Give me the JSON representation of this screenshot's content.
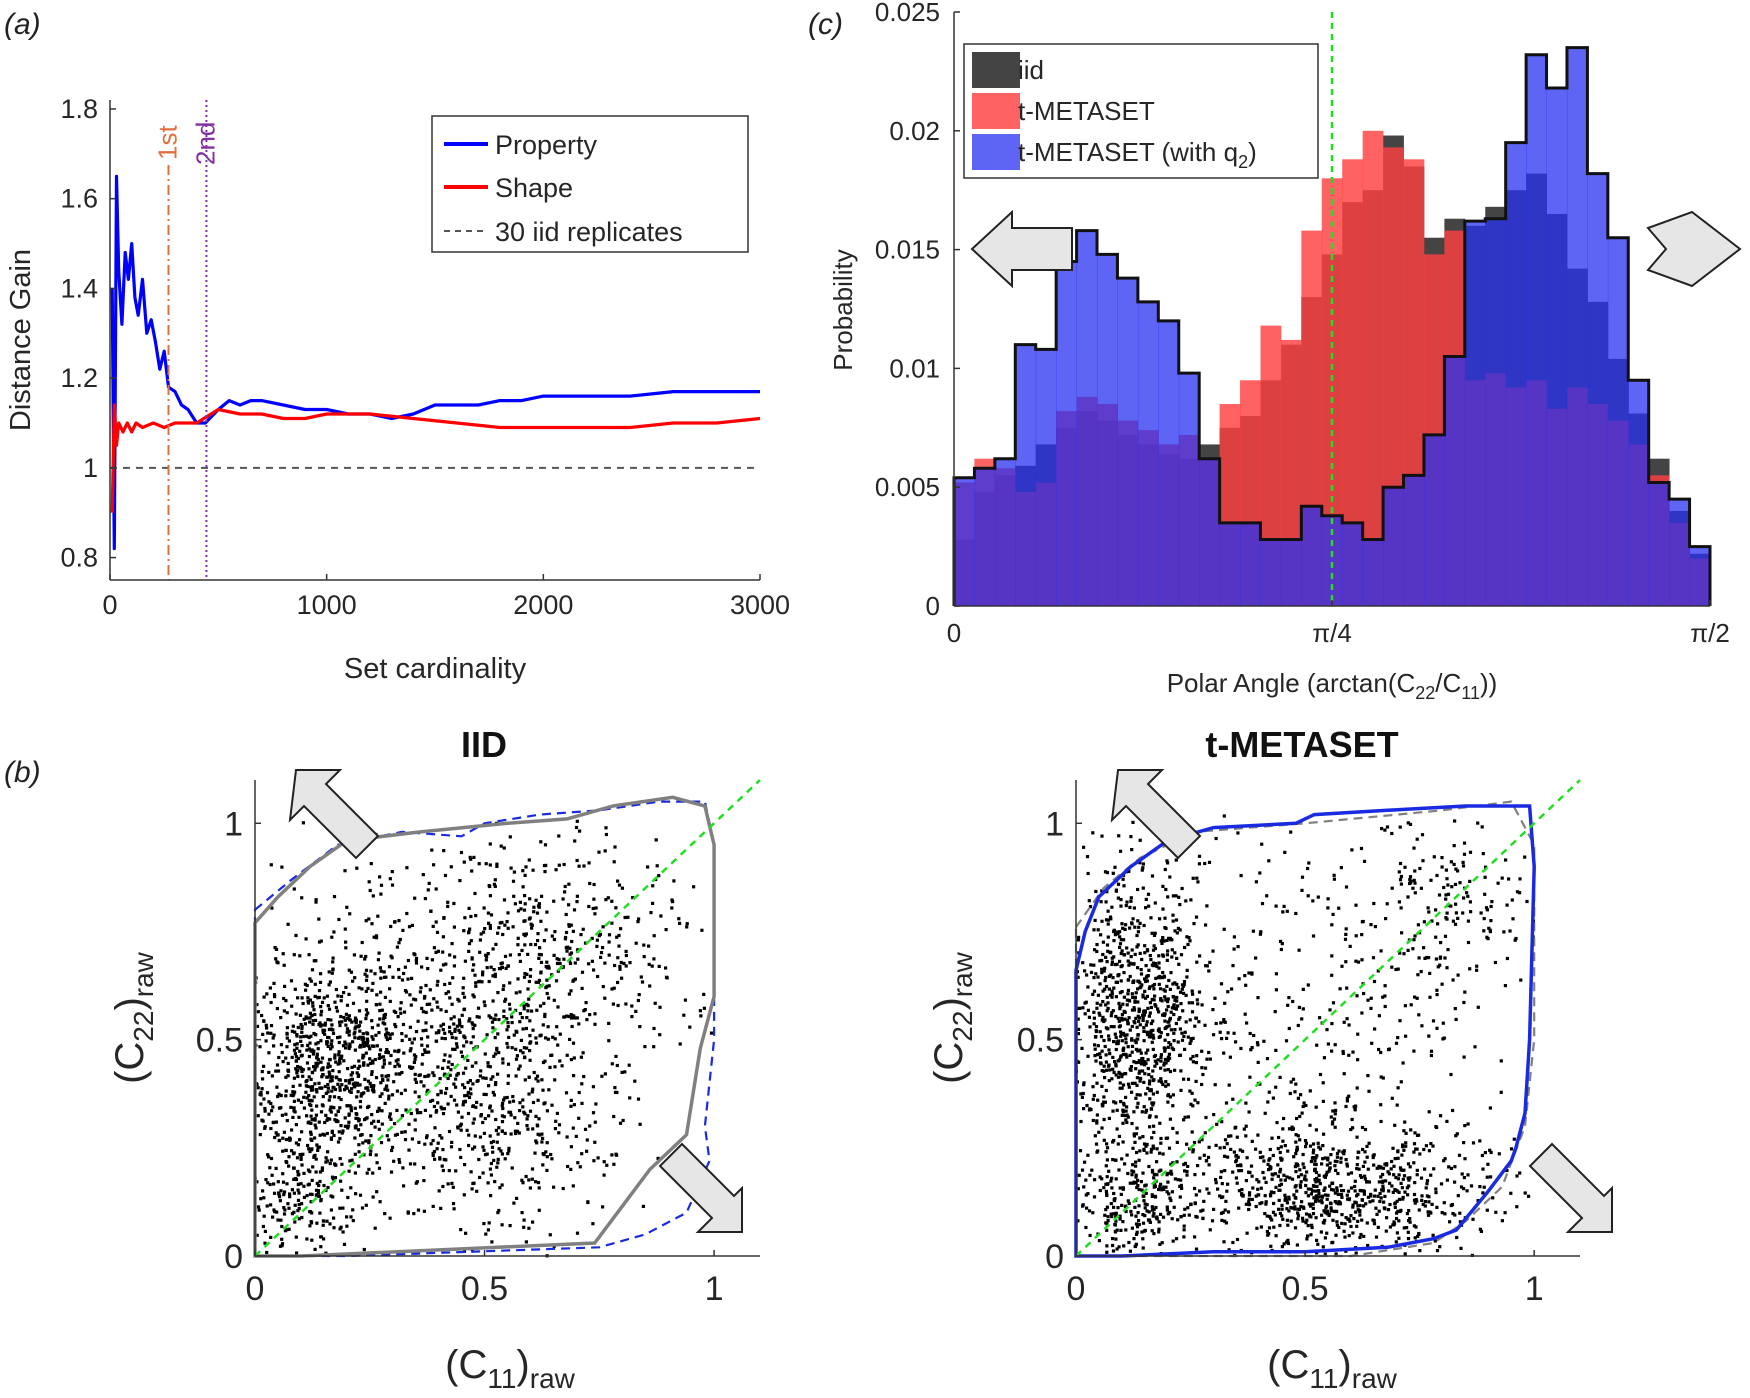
{
  "panel_labels": {
    "a": "(a)",
    "b": "(b)",
    "c": "(c)"
  },
  "colors": {
    "property": "#0000ff",
    "shape": "#ff0000",
    "iid_line": "#555555",
    "first": "#e07040",
    "second": "#8030a0",
    "green": "#22dd22",
    "iid_bar": "#3a3a3a",
    "tmeta_bar": "#ff4040",
    "q2_bar": "#2830f0",
    "gray_hull": "#808080",
    "blue_hull": "#1a2ae0"
  },
  "chart_data": [
    {
      "id": "a",
      "type": "line",
      "xlabel": "Set cardinality",
      "ylabel": "Distance Gain",
      "xlim": [
        0,
        3000
      ],
      "ylim": [
        0.75,
        1.82
      ],
      "xticks": [
        0,
        1000,
        2000,
        3000
      ],
      "xtick_labels": [
        "0",
        "1000",
        "2000",
        "3000"
      ],
      "yticks": [
        0.8,
        1,
        1.2,
        1.4,
        1.6,
        1.8
      ],
      "ytick_labels": [
        "0.8",
        "1",
        "1.2",
        "1.4",
        "1.6",
        "1.8"
      ],
      "legend_position": "top-right",
      "series": [
        {
          "name": "Property",
          "x": [
            10,
            20,
            30,
            40,
            55,
            70,
            85,
            100,
            115,
            130,
            150,
            170,
            190,
            210,
            230,
            250,
            270,
            300,
            330,
            360,
            400,
            440,
            500,
            550,
            600,
            650,
            700,
            800,
            900,
            1000,
            1100,
            1200,
            1300,
            1400,
            1500,
            1600,
            1700,
            1800,
            1900,
            2000,
            2200,
            2400,
            2600,
            2800,
            3000
          ],
          "y": [
            1.4,
            0.82,
            1.65,
            1.44,
            1.32,
            1.48,
            1.42,
            1.5,
            1.38,
            1.34,
            1.42,
            1.3,
            1.33,
            1.28,
            1.22,
            1.26,
            1.18,
            1.17,
            1.14,
            1.13,
            1.1,
            1.1,
            1.13,
            1.15,
            1.14,
            1.15,
            1.15,
            1.14,
            1.13,
            1.13,
            1.12,
            1.12,
            1.11,
            1.12,
            1.14,
            1.14,
            1.14,
            1.15,
            1.15,
            1.16,
            1.16,
            1.16,
            1.17,
            1.17,
            1.17
          ]
        },
        {
          "name": "Shape",
          "x": [
            10,
            20,
            30,
            40,
            60,
            80,
            100,
            120,
            150,
            200,
            250,
            300,
            400,
            500,
            600,
            700,
            800,
            900,
            1000,
            1200,
            1400,
            1600,
            1800,
            2000,
            2200,
            2400,
            2600,
            2800,
            3000
          ],
          "y": [
            0.9,
            1.14,
            1.05,
            1.1,
            1.08,
            1.1,
            1.08,
            1.1,
            1.09,
            1.1,
            1.09,
            1.1,
            1.1,
            1.13,
            1.12,
            1.12,
            1.11,
            1.11,
            1.12,
            1.12,
            1.11,
            1.1,
            1.09,
            1.09,
            1.09,
            1.09,
            1.1,
            1.1,
            1.11
          ]
        },
        {
          "name": "30 iid replicates",
          "x": [
            0,
            3000
          ],
          "y": [
            1,
            1
          ]
        }
      ],
      "annotations": [
        {
          "label": "1st",
          "x": 270,
          "style": "dash-dot"
        },
        {
          "label": "2nd",
          "x": 445,
          "style": "dotted"
        }
      ]
    },
    {
      "id": "c",
      "type": "bar",
      "xlabel": "Polar Angle (arctan(C",
      "xlabel_sub1": "22",
      "xlabel_mid": "/C",
      "xlabel_sub2": "11",
      "xlabel_end": "))",
      "ylabel": "Probability",
      "xlim": [
        0,
        1.5708
      ],
      "ylim": [
        0,
        0.025
      ],
      "xtick_labels": [
        "0",
        "π/4",
        "π/2"
      ],
      "ytick_labels": [
        "0",
        "0.005",
        "0.01",
        "0.015",
        "0.02",
        "0.025"
      ],
      "legend_position": "top-left",
      "legend_q2_prefix": "t-METASET (with q",
      "legend_q2_sub": "2",
      "legend_q2_suffix": ")",
      "series": [
        {
          "name": "iid",
          "values": [
            0.0028,
            0.0048,
            0.0055,
            0.0059,
            0.0068,
            0.0075,
            0.0082,
            0.0078,
            0.0072,
            0.0068,
            0.0064,
            0.0062,
            0.0068,
            0.0075,
            0.008,
            0.0095,
            0.011,
            0.013,
            0.0148,
            0.017,
            0.0175,
            0.0198,
            0.0185,
            0.0155,
            0.0163,
            0.016,
            0.0168,
            0.0175,
            0.0182,
            0.0165,
            0.0142,
            0.0128,
            0.0104,
            0.0081,
            0.0062,
            0.004,
            0.0022
          ]
        },
        {
          "name": "t-METASET",
          "values": [
            0.0052,
            0.0062,
            0.0058,
            0.0048,
            0.0052,
            0.0082,
            0.0088,
            0.0085,
            0.0078,
            0.0074,
            0.0068,
            0.0072,
            0.0062,
            0.0085,
            0.0095,
            0.0118,
            0.0112,
            0.0158,
            0.018,
            0.0188,
            0.02,
            0.0193,
            0.0188,
            0.0148,
            0.0158,
            0.0095,
            0.0098,
            0.0092,
            0.0095,
            0.0083,
            0.0092,
            0.0085,
            0.0078,
            0.0068,
            0.0055,
            0.0035,
            0.002
          ]
        },
        {
          "name": "t-METASET (with q2)",
          "values": [
            0.0054,
            0.0058,
            0.0062,
            0.011,
            0.0108,
            0.0145,
            0.0158,
            0.0148,
            0.0138,
            0.0128,
            0.012,
            0.0098,
            0.0062,
            0.0035,
            0.0035,
            0.0028,
            0.0028,
            0.0042,
            0.0038,
            0.0035,
            0.0028,
            0.005,
            0.0055,
            0.0072,
            0.0105,
            0.0162,
            0.0163,
            0.0195,
            0.0232,
            0.0218,
            0.0235,
            0.0182,
            0.0155,
            0.0095,
            0.0052,
            0.0045,
            0.0025
          ]
        }
      ],
      "annotations": [
        {
          "type": "vline",
          "x": 0.7854,
          "style": "dashed"
        }
      ]
    },
    {
      "id": "b-left",
      "type": "scatter",
      "title": "IID",
      "xlabel": "(C",
      "xlabel_sub": "11",
      "xlabel_suffix": ")",
      "xlabel_raw": "raw",
      "ylabel": "(C",
      "ylabel_sub": "22",
      "ylabel_suffix": ")",
      "ylabel_raw": "raw",
      "xlim": [
        0,
        1.1
      ],
      "ylim": [
        0,
        1.1
      ],
      "xtick_labels": [
        "0",
        "0.5",
        "1"
      ],
      "ytick_labels": [
        "0",
        "0.5",
        "1"
      ],
      "clusters": [
        {
          "cx": 0.15,
          "cy": 0.45,
          "sx": 0.09,
          "sy": 0.11,
          "n": 600
        },
        {
          "cx": 0.35,
          "cy": 0.5,
          "sx": 0.18,
          "sy": 0.2,
          "n": 700
        },
        {
          "cx": 0.65,
          "cy": 0.7,
          "sx": 0.15,
          "sy": 0.15,
          "n": 450
        },
        {
          "cx": 0.1,
          "cy": 0.15,
          "sx": 0.08,
          "sy": 0.08,
          "n": 250
        },
        {
          "cx": 0.55,
          "cy": 0.3,
          "sx": 0.14,
          "sy": 0.13,
          "n": 300
        }
      ],
      "hull_solid": [
        [
          0,
          0.77
        ],
        [
          0.05,
          0.83
        ],
        [
          0.12,
          0.9
        ],
        [
          0.2,
          0.96
        ],
        [
          0.36,
          0.98
        ],
        [
          0.55,
          1.0
        ],
        [
          0.68,
          1.01
        ],
        [
          0.78,
          1.04
        ],
        [
          0.91,
          1.06
        ],
        [
          0.98,
          1.04
        ],
        [
          1.0,
          0.95
        ],
        [
          1.0,
          0.6
        ],
        [
          0.97,
          0.48
        ],
        [
          0.94,
          0.28
        ],
        [
          0.86,
          0.2
        ],
        [
          0.74,
          0.03
        ],
        [
          0.1,
          0.0
        ],
        [
          0,
          0
        ]
      ],
      "hull_dashed": [
        [
          0,
          0.8
        ],
        [
          0.08,
          0.87
        ],
        [
          0.18,
          0.95
        ],
        [
          0.32,
          0.98
        ],
        [
          0.45,
          0.97
        ],
        [
          0.5,
          1.0
        ],
        [
          0.62,
          1.02
        ],
        [
          0.75,
          1.03
        ],
        [
          0.88,
          1.05
        ],
        [
          0.98,
          1.05
        ],
        [
          1.0,
          0.95
        ],
        [
          1.0,
          0.5
        ],
        [
          0.98,
          0.3
        ],
        [
          0.99,
          0.22
        ],
        [
          0.94,
          0.1
        ],
        [
          0.85,
          0.05
        ],
        [
          0.75,
          0.02
        ],
        [
          0.2,
          0.0
        ],
        [
          0,
          0
        ]
      ]
    },
    {
      "id": "b-right",
      "type": "scatter",
      "title": "t-METASET",
      "xlabel": "(C",
      "xlabel_sub": "11",
      "xlabel_suffix": ")",
      "xlabel_raw": "raw",
      "ylabel": "(C",
      "ylabel_sub": "22",
      "ylabel_suffix": ")",
      "ylabel_raw": "raw",
      "xlim": [
        0,
        1.1
      ],
      "ylim": [
        0,
        1.1
      ],
      "xtick_labels": [
        "0",
        "0.5",
        "1"
      ],
      "ytick_labels": [
        "0",
        "0.5",
        "1"
      ],
      "clusters": [
        {
          "cx": 0.13,
          "cy": 0.55,
          "sx": 0.08,
          "sy": 0.17,
          "n": 900
        },
        {
          "cx": 0.55,
          "cy": 0.15,
          "sx": 0.18,
          "sy": 0.08,
          "n": 800
        },
        {
          "cx": 0.5,
          "cy": 0.55,
          "sx": 0.22,
          "sy": 0.25,
          "n": 450
        },
        {
          "cx": 0.12,
          "cy": 0.12,
          "sx": 0.07,
          "sy": 0.07,
          "n": 250
        },
        {
          "cx": 0.82,
          "cy": 0.82,
          "sx": 0.1,
          "sy": 0.1,
          "n": 150
        }
      ],
      "hull_solid": [
        [
          0,
          0.66
        ],
        [
          0.02,
          0.75
        ],
        [
          0.05,
          0.83
        ],
        [
          0.12,
          0.9
        ],
        [
          0.2,
          0.96
        ],
        [
          0.3,
          0.99
        ],
        [
          0.48,
          1.0
        ],
        [
          0.52,
          1.02
        ],
        [
          0.68,
          1.03
        ],
        [
          0.85,
          1.04
        ],
        [
          0.99,
          1.04
        ],
        [
          1.0,
          0.9
        ],
        [
          0.99,
          0.5
        ],
        [
          0.98,
          0.33
        ],
        [
          0.96,
          0.25
        ],
        [
          0.95,
          0.22
        ],
        [
          0.9,
          0.15
        ],
        [
          0.83,
          0.06
        ],
        [
          0.78,
          0.04
        ],
        [
          0.68,
          0.02
        ],
        [
          0.5,
          0.01
        ],
        [
          0.3,
          0.01
        ],
        [
          0.1,
          0.0
        ],
        [
          0,
          0
        ],
        [
          0,
          0.4
        ]
      ],
      "hull_dashed": [
        [
          0,
          0.76
        ],
        [
          0.06,
          0.85
        ],
        [
          0.14,
          0.92
        ],
        [
          0.26,
          0.98
        ],
        [
          0.5,
          1.0
        ],
        [
          0.8,
          1.03
        ],
        [
          0.95,
          1.05
        ],
        [
          1.0,
          0.95
        ],
        [
          1.0,
          0.5
        ],
        [
          0.98,
          0.3
        ],
        [
          0.93,
          0.16
        ],
        [
          0.85,
          0.08
        ],
        [
          0.78,
          0.03
        ],
        [
          0.6,
          0.0
        ],
        [
          0.2,
          0.0
        ],
        [
          0,
          0
        ]
      ]
    }
  ]
}
